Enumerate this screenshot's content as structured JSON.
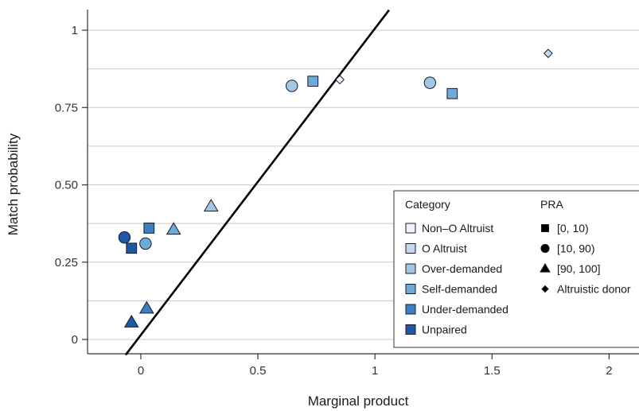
{
  "chart_data": {
    "type": "scatter",
    "xlabel": "Marginal product",
    "ylabel": "Match probability",
    "xlim": [
      -0.22,
      2.15
    ],
    "ylim": [
      -0.05,
      1.07
    ],
    "x_ticks": [
      {
        "value": 0,
        "label": "0"
      },
      {
        "value": 0.5,
        "label": "0.5"
      },
      {
        "value": 1,
        "label": "1"
      },
      {
        "value": 1.5,
        "label": "1.5"
      },
      {
        "value": 2,
        "label": "2"
      }
    ],
    "y_ticks": [
      {
        "value": 0,
        "label": "0"
      },
      {
        "value": 0.25,
        "label": "0.25"
      },
      {
        "value": 0.5,
        "label": "0.50"
      },
      {
        "value": 0.75,
        "label": "0.75"
      },
      {
        "value": 1,
        "label": "1"
      }
    ],
    "grid": "horizontal",
    "fit_line": {
      "x": [
        -0.065,
        1.06
      ],
      "y": [
        -0.05,
        1.065
      ]
    },
    "legend": {
      "placement": "bottom-right",
      "category_title": "Category",
      "pra_title": "PRA",
      "categories": [
        {
          "name": "Non–O Altruist",
          "color": "#f0f3fa"
        },
        {
          "name": "O Altruist",
          "color": "#c6d9ec"
        },
        {
          "name": "Over-demanded",
          "color": "#a3c7e2"
        },
        {
          "name": "Self-demanded",
          "color": "#6eaad6"
        },
        {
          "name": "Under-demanded",
          "color": "#3d7fbf"
        },
        {
          "name": "Unpaired",
          "color": "#1d5aa3"
        }
      ],
      "pra": [
        {
          "label": "[0, 10)",
          "shape": "square"
        },
        {
          "label": "[10, 90)",
          "shape": "circle"
        },
        {
          "label": "[90, 100]",
          "shape": "triangle"
        },
        {
          "label": "Altruistic donor",
          "shape": "diamond"
        }
      ]
    },
    "points": [
      {
        "x": 0.85,
        "y": 0.84,
        "category": "Non–O Altruist",
        "shape": "diamond"
      },
      {
        "x": 1.74,
        "y": 0.925,
        "category": "O Altruist",
        "shape": "diamond"
      },
      {
        "x": 0.645,
        "y": 0.82,
        "category": "Over-demanded",
        "shape": "circle"
      },
      {
        "x": 1.235,
        "y": 0.83,
        "category": "Over-demanded",
        "shape": "circle"
      },
      {
        "x": 0.3,
        "y": 0.43,
        "category": "Over-demanded",
        "shape": "triangle"
      },
      {
        "x": 0.735,
        "y": 0.835,
        "category": "Self-demanded",
        "shape": "square"
      },
      {
        "x": 1.33,
        "y": 0.795,
        "category": "Self-demanded",
        "shape": "square"
      },
      {
        "x": 0.02,
        "y": 0.31,
        "category": "Self-demanded",
        "shape": "circle"
      },
      {
        "x": 0.14,
        "y": 0.355,
        "category": "Self-demanded",
        "shape": "triangle"
      },
      {
        "x": 0.035,
        "y": 0.36,
        "category": "Under-demanded",
        "shape": "square"
      },
      {
        "x": 0.025,
        "y": 0.1,
        "category": "Under-demanded",
        "shape": "triangle"
      },
      {
        "x": -0.04,
        "y": 0.295,
        "category": "Unpaired",
        "shape": "square"
      },
      {
        "x": -0.07,
        "y": 0.33,
        "category": "Unpaired",
        "shape": "circle"
      },
      {
        "x": -0.04,
        "y": 0.055,
        "category": "Unpaired",
        "shape": "triangle"
      }
    ]
  }
}
